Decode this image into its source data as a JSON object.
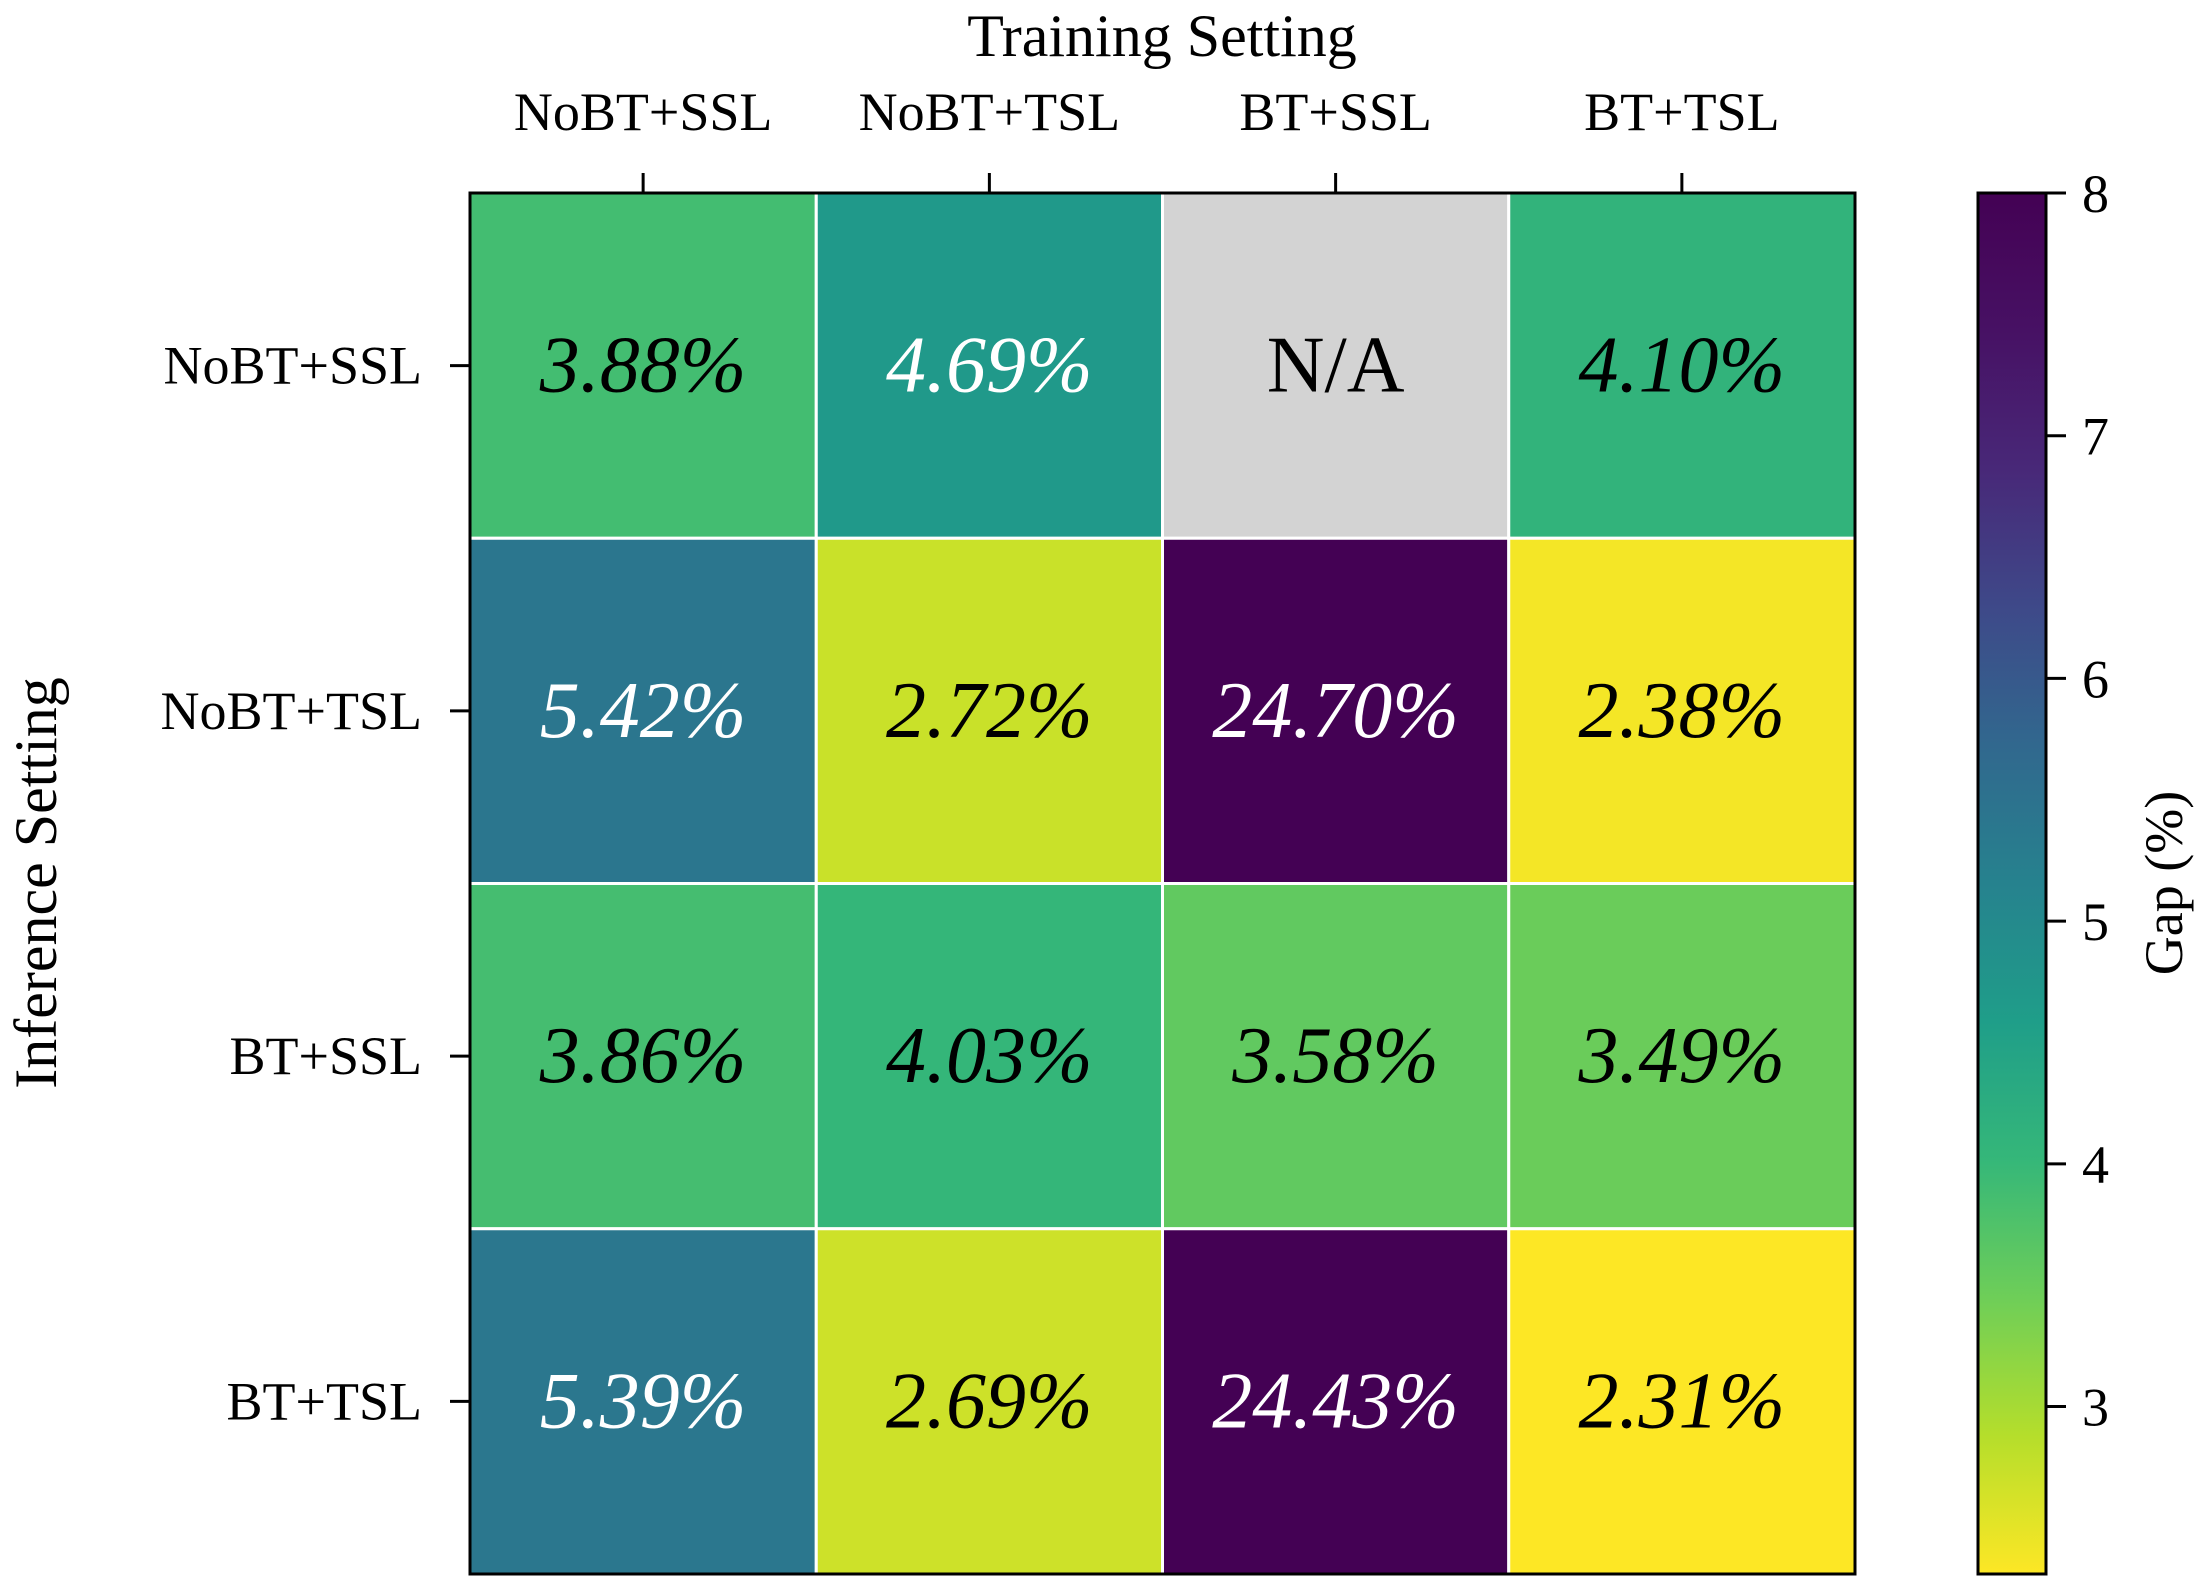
{
  "chart_data": {
    "type": "heatmap",
    "xlabel": "Training Setting",
    "ylabel": "Inference Setting",
    "x_categories": [
      "NoBT+SSL",
      "NoBT+TSL",
      "BT+SSL",
      "BT+TSL"
    ],
    "y_categories": [
      "NoBT+SSL",
      "NoBT+TSL",
      "BT+SSL",
      "BT+TSL"
    ],
    "values": [
      [
        3.88,
        4.69,
        null,
        4.1
      ],
      [
        5.42,
        2.72,
        24.7,
        2.38
      ],
      [
        3.86,
        4.03,
        3.58,
        3.49
      ],
      [
        5.39,
        2.69,
        24.43,
        2.31
      ]
    ],
    "cell_labels": [
      [
        "3.88%",
        "4.69%",
        "N/A",
        "4.10%"
      ],
      [
        "5.42%",
        "2.72%",
        "24.70%",
        "2.38%"
      ],
      [
        "3.86%",
        "4.03%",
        "3.58%",
        "3.49%"
      ],
      [
        "5.39%",
        "2.69%",
        "24.43%",
        "2.31%"
      ]
    ],
    "missing_color": "#d3d3d3",
    "colormap": "viridis_r",
    "colorbar": {
      "label": "Gap (%)",
      "range": [
        2.31,
        8
      ],
      "ticks": [
        3,
        4,
        5,
        6,
        7,
        8
      ],
      "tick_labels": [
        "3",
        "4",
        "5",
        "6",
        "7",
        "8"
      ]
    },
    "x_axis_position": "top",
    "grid": false
  }
}
